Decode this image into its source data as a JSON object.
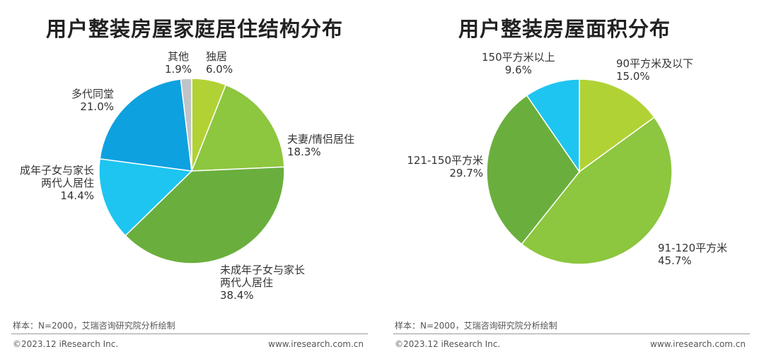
{
  "chart_data": [
    {
      "type": "pie",
      "title": "用户整装房屋家庭居住结构分布",
      "slices": [
        {
          "label_lines": [
            "独居"
          ],
          "value": 6.0,
          "value_text": "6.0%",
          "color": "#b1d235"
        },
        {
          "label_lines": [
            "夫妻/情侣居住"
          ],
          "value": 18.3,
          "value_text": "18.3%",
          "color": "#8dc63f"
        },
        {
          "label_lines": [
            "未成年子女与家长",
            "两代人居住"
          ],
          "value": 38.4,
          "value_text": "38.4%",
          "color": "#6aaf3d"
        },
        {
          "label_lines": [
            "成年子女与家长",
            "两代人居住"
          ],
          "value": 14.4,
          "value_text": "14.4%",
          "color": "#1ec5f0"
        },
        {
          "label_lines": [
            "多代同堂"
          ],
          "value": 21.0,
          "value_text": "21.0%",
          "color": "#0ea1e0"
        },
        {
          "label_lines": [
            "其他"
          ],
          "value": 1.9,
          "value_text": "1.9%",
          "color": "#c0c4c8"
        }
      ]
    },
    {
      "type": "pie",
      "title": "用户整装房屋面积分布",
      "slices": [
        {
          "label_lines": [
            "90平方米及以下"
          ],
          "value": 15.0,
          "value_text": "15.0%",
          "color": "#b1d235"
        },
        {
          "label_lines": [
            "91-120平方米"
          ],
          "value": 45.7,
          "value_text": "45.7%",
          "color": "#8dc63f"
        },
        {
          "label_lines": [
            "121-150平方米"
          ],
          "value": 29.7,
          "value_text": "29.7%",
          "color": "#6aaf3d"
        },
        {
          "label_lines": [
            "150平方米以上"
          ],
          "value": 9.6,
          "value_text": "9.6%",
          "color": "#1ec5f0"
        }
      ]
    }
  ],
  "footer": {
    "source": "样本：N=2000，艾瑞咨询研究院分析绘制",
    "copyright": "©2023.12 iResearch Inc.",
    "website": "www.iresearch.com.cn"
  }
}
